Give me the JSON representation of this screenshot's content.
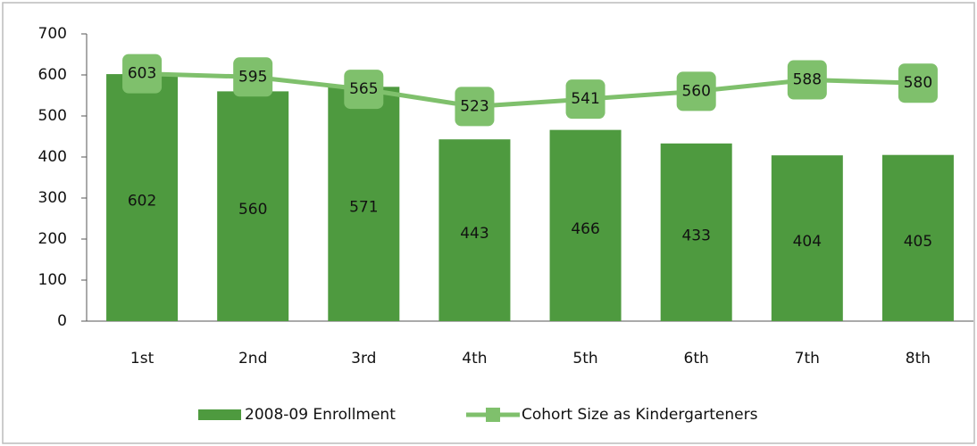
{
  "chart_data": {
    "type": "bar",
    "categories": [
      "1st",
      "2nd",
      "3rd",
      "4th",
      "5th",
      "6th",
      "7th",
      "8th"
    ],
    "series": [
      {
        "name": "2008-09 Enrollment",
        "type": "bar",
        "color": "#4e9a3f",
        "values": [
          602,
          560,
          571,
          443,
          466,
          433,
          404,
          405
        ]
      },
      {
        "name": "Cohort Size as Kindergarteners",
        "type": "line",
        "color": "#7fc06c",
        "values": [
          603,
          595,
          565,
          523,
          541,
          560,
          588,
          580
        ]
      }
    ],
    "ylim": [
      0,
      700
    ],
    "yticks": [
      0,
      100,
      200,
      300,
      400,
      500,
      600,
      700
    ],
    "grid": false,
    "legend": "bottom"
  }
}
